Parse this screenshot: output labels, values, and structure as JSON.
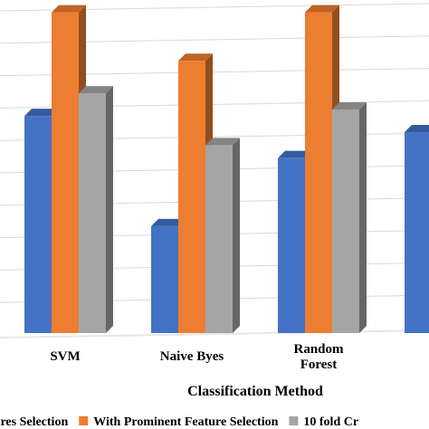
{
  "chart_data": {
    "type": "bar",
    "style": "3d-clustered-column",
    "xlabel": "Classification Method",
    "ylabel": "",
    "grid": true,
    "legend_position": "bottom",
    "ylim": [
      0,
      100
    ],
    "categories": [
      [
        "SVM"
      ],
      [
        "Naive  Byes"
      ],
      [
        "Random",
        "Forest"
      ],
      [
        ""
      ]
    ],
    "series": [
      {
        "name": "tures Selection",
        "color": "#4472C4",
        "values": [
          67,
          33,
          54,
          62
        ]
      },
      {
        "name": "With Prominent Feature Selection",
        "color": "#ED7D31",
        "values": [
          99,
          84,
          99,
          null
        ]
      },
      {
        "name": "10 fold Cr",
        "color": "#A5A5A5",
        "values": [
          74,
          58,
          69,
          null
        ]
      }
    ]
  }
}
